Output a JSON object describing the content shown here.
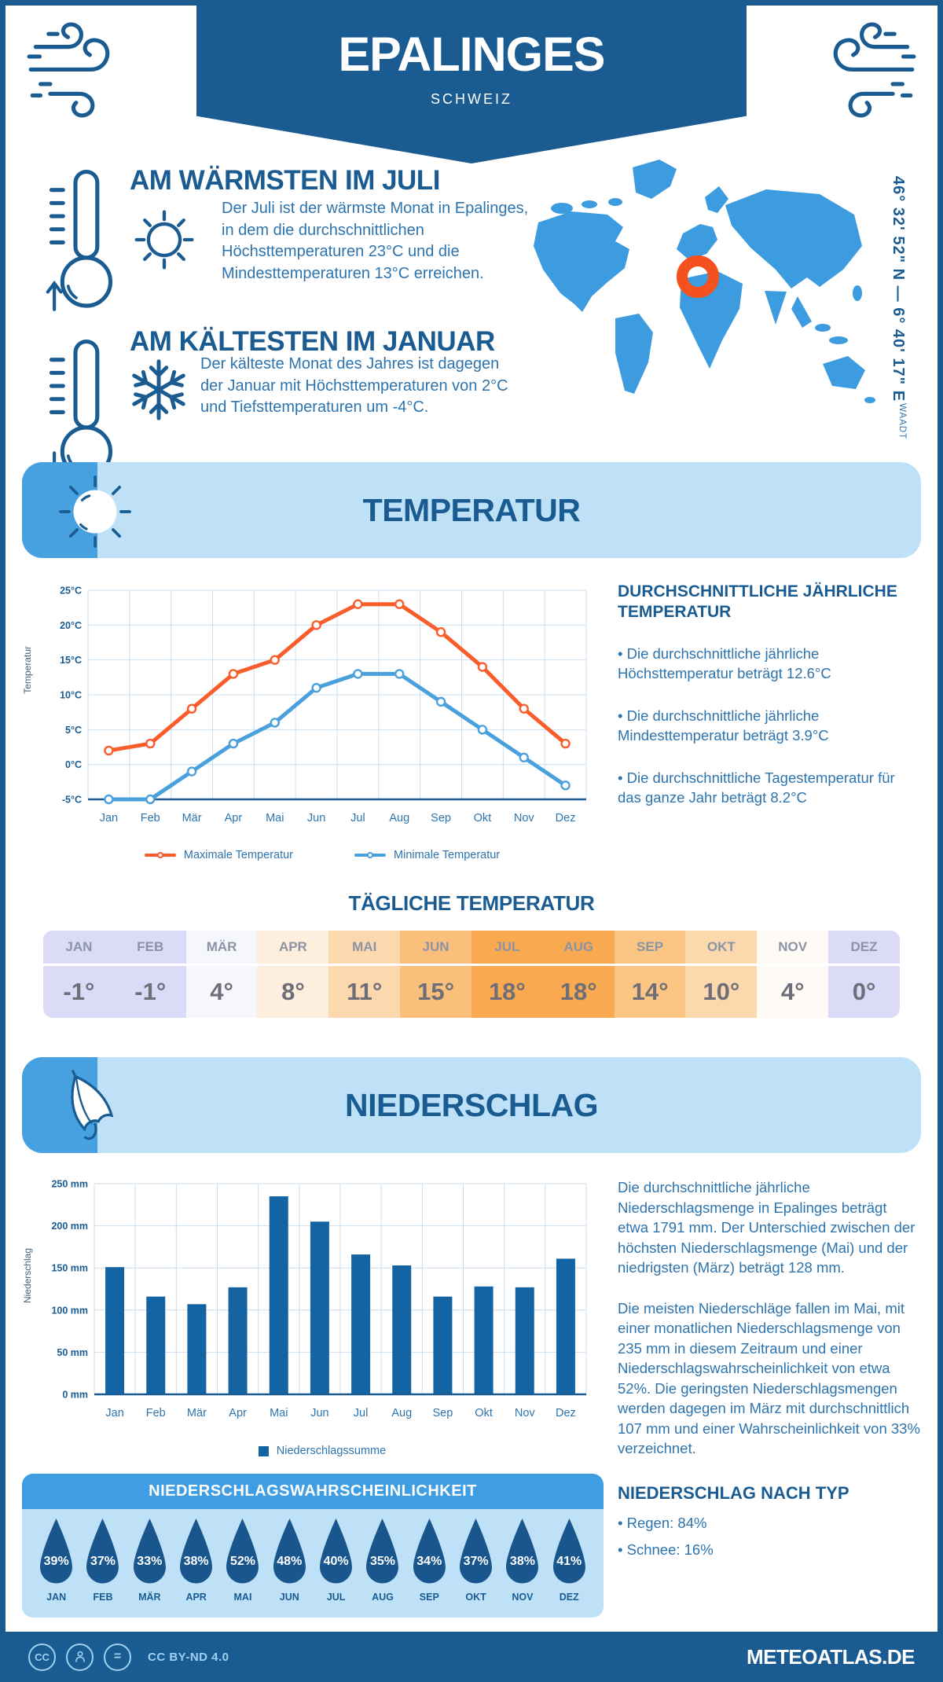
{
  "colors": {
    "primary_dark": "#1a5c92",
    "band_blue": "#3f9ee3",
    "strip_blue": "#47a1e1",
    "panel_light": "#bfe1f8",
    "map_blue": "#3d9bdf",
    "text_blue": "#2d74ae",
    "accent_orange": "#f95d2c",
    "line_blue": "#4aa0dc",
    "bar_blue": "#1464a3",
    "droplet_blue": "#1a568e",
    "marker_orange": "#f4511e",
    "grid": "#ccdeee"
  },
  "header": {
    "title": "EPALINGES",
    "subtitle": "SCHWEIZ"
  },
  "intro": {
    "warmest": {
      "title": "AM WÄRMSTEN IM JULI",
      "text": "Der Juli ist der wärmste Monat in Epalinges, in dem die durchschnittlichen Höchsttemperaturen 23°C und die Mindesttemperaturen 13°C erreichen."
    },
    "coldest": {
      "title": "AM KÄLTESTEN IM JANUAR",
      "text": "Der kälteste Monat des Jahres ist dagegen der Januar mit Höchsttemperaturen von 2°C und Tiefsttemperaturen um -4°C."
    }
  },
  "map": {
    "coordinates": "46° 32' 52\" N — 6° 40' 17\" E",
    "region": "WAADT"
  },
  "sections": {
    "temperature": "TEMPERATUR",
    "daily": "TÄGLICHE TEMPERATUR",
    "precipitation": "NIEDERSCHLAG",
    "probability": "NIEDERSCHLAGSWAHRSCHEINLICHKEIT"
  },
  "annual": {
    "heading": "DURCHSCHNITTLICHE JÄHRLICHE TEMPERATUR",
    "bullets": [
      "• Die durchschnittliche jährliche Höchsttemperatur beträgt 12.6°C",
      "• Die durchschnittliche jährliche Mindesttemperatur beträgt 3.9°C",
      "• Die durchschnittliche Tagestemperatur für das ganze Jahr beträgt 8.2°C"
    ]
  },
  "daily_table": {
    "months": [
      "JAN",
      "FEB",
      "MÄR",
      "APR",
      "MAI",
      "JUN",
      "JUL",
      "AUG",
      "SEP",
      "OKT",
      "NOV",
      "DEZ"
    ],
    "values": [
      "-1°",
      "-1°",
      "4°",
      "8°",
      "11°",
      "15°",
      "18°",
      "18°",
      "14°",
      "10°",
      "4°",
      "0°"
    ],
    "cell_colors": [
      "#dcdbf7",
      "#dcdbf7",
      "#f6f6fd",
      "#fdeede",
      "#fcd8ae",
      "#fbbf7c",
      "#f9a94f",
      "#f9a94f",
      "#fbc583",
      "#fcd8ad",
      "#fefaf5",
      "#dcdbf7"
    ]
  },
  "precip": {
    "p1": "Die durchschnittliche jährliche Niederschlagsmenge in Epalinges beträgt etwa 1791 mm. Der Unterschied zwischen der höchsten Niederschlagsmenge (Mai) und der niedrigsten (März) beträgt 128 mm.",
    "p2": "Die meisten Niederschläge fallen im Mai, mit einer monatlichen Niederschlagsmenge von 235 mm in diesem Zeitraum und einer Niederschlagswahrscheinlichkeit von etwa 52%. Die geringsten Niederschlagsmengen werden dagegen im März mit durchschnittlich 107 mm und einer Wahrscheinlichkeit von 33% verzeichnet.",
    "type_heading": "NIEDERSCHLAG NACH TYP",
    "types": [
      "• Regen: 84%",
      "• Schnee: 16%"
    ]
  },
  "probability": {
    "months": [
      "JAN",
      "FEB",
      "MÄR",
      "APR",
      "MAI",
      "JUN",
      "JUL",
      "AUG",
      "SEP",
      "OKT",
      "NOV",
      "DEZ"
    ],
    "labels": [
      "39%",
      "37%",
      "33%",
      "38%",
      "52%",
      "48%",
      "40%",
      "35%",
      "34%",
      "37%",
      "38%",
      "41%"
    ]
  },
  "footer": {
    "cc_label": "CC",
    "eq_label": "=",
    "license": "CC BY-ND 4.0",
    "site": "METEOATLAS.DE"
  },
  "chart_data": [
    {
      "type": "line",
      "title": "Monatliche Temperatur",
      "x": [
        "Jan",
        "Feb",
        "Mär",
        "Apr",
        "Mai",
        "Jun",
        "Jul",
        "Aug",
        "Sep",
        "Okt",
        "Nov",
        "Dez"
      ],
      "ylabel": "Temperatur",
      "ylim": [
        -5,
        25
      ],
      "yticks": [
        "25°C",
        "20°C",
        "15°C",
        "10°C",
        "5°C",
        "0°C",
        "-5°C"
      ],
      "ytick_values": [
        25,
        20,
        15,
        10,
        5,
        0,
        -5
      ],
      "grid": true,
      "legend_position": "bottom",
      "series": [
        {
          "name": "Maximale Temperatur",
          "color": "#f95d2c",
          "values": [
            2,
            3,
            8,
            13,
            15,
            20,
            23,
            23,
            19,
            14,
            8,
            3
          ]
        },
        {
          "name": "Minimale Temperatur",
          "color": "#4aa0dc",
          "values": [
            -5,
            -5,
            -1,
            3,
            6,
            11,
            13,
            13,
            9,
            5,
            1,
            -3
          ]
        }
      ]
    },
    {
      "type": "bar",
      "title": "Monatliche Niederschlagssumme",
      "categories": [
        "Jan",
        "Feb",
        "Mär",
        "Apr",
        "Mai",
        "Jun",
        "Jul",
        "Aug",
        "Sep",
        "Okt",
        "Nov",
        "Dez"
      ],
      "values": [
        151,
        116,
        107,
        127,
        235,
        205,
        166,
        153,
        116,
        128,
        127,
        161
      ],
      "ylabel": "Niederschlag",
      "ylim": [
        0,
        250
      ],
      "yticks": [
        "0 mm",
        "50 mm",
        "100 mm",
        "150 mm",
        "200 mm",
        "250 mm"
      ],
      "ytick_values": [
        0,
        50,
        100,
        150,
        200,
        250
      ],
      "grid": true,
      "legend": "Niederschlagssumme",
      "bar_color": "#1464a3"
    },
    {
      "type": "pictogram",
      "title": "Niederschlagswahrscheinlichkeit",
      "categories": [
        "JAN",
        "FEB",
        "MÄR",
        "APR",
        "MAI",
        "JUN",
        "JUL",
        "AUG",
        "SEP",
        "OKT",
        "NOV",
        "DEZ"
      ],
      "values": [
        39,
        37,
        33,
        38,
        52,
        48,
        40,
        35,
        34,
        37,
        38,
        41
      ]
    }
  ]
}
